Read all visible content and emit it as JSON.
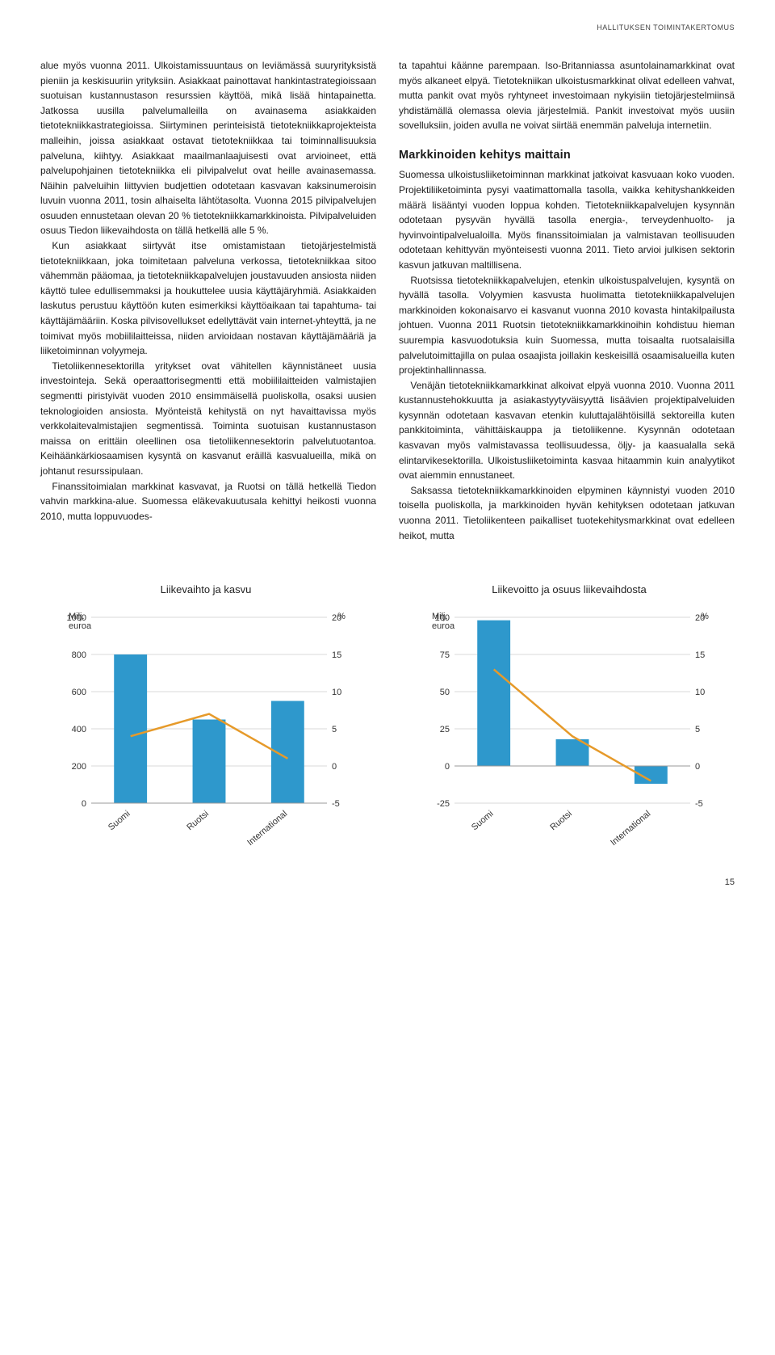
{
  "header_label": "HALLITUKSEN TOIMINTAKERTOMUS",
  "page_number": "15",
  "col1": {
    "p1": "alue myös vuonna 2011. Ulkoistamissuuntaus on leviämässä suuryrityksistä pieniin ja keskisuuriin yrityksiin. Asiakkaat painottavat hankintastrategioissaan suotuisan kustannustason resurssien käyttöä, mikä lisää hintapainetta. Jatkossa uusilla palvelumalleilla on avainasema asiakkaiden tietotekniikkastrategioissa. Siirtyminen perinteisistä tietotekniikkaprojekteista malleihin, joissa asiakkaat ostavat tietotekniikkaa tai toiminnallisuuksia palveluna, kiihtyy. Asiakkaat maailmanlaajuisesti ovat arvioineet, että palvelupohjainen tietotekniikka eli pilvipalvelut ovat heille avainasemassa. Näihin palveluihin liittyvien budjettien odotetaan kasvavan kaksinumeroisin luvuin vuonna 2011, tosin alhaiselta lähtötasolta. Vuonna 2015 pilvipalvelujen osuuden ennustetaan olevan 20 % tietotekniikkamarkkinoista. Pilvipalveluiden osuus Tiedon liikevaihdosta on tällä hetkellä alle 5 %.",
    "p2": "Kun asiakkaat siirtyvät itse omistamistaan tietojärjestelmistä tietotekniikkaan, joka toimitetaan palveluna verkossa, tietotekniikkaa sitoo vähemmän pääomaa, ja tietotekniikkapalvelujen joustavuuden ansiosta niiden käyttö tulee edullisemmaksi ja houkuttelee uusia käyttäjäryhmiä. Asiakkaiden laskutus perustuu käyttöön kuten esimerkiksi käyttöaikaan tai tapahtuma- tai käyttäjämääriin. Koska pilvisovellukset edellyttävät vain internet-yhteyttä, ja ne toimivat myös mobiililaitteissa, niiden arvioidaan nostavan käyttäjämääriä ja liiketoiminnan volyymeja.",
    "p3": "Tietoliikennesektorilla yritykset ovat vähitellen käynnistäneet uusia investointeja. Sekä operaattorisegmentti että mobiililaitteiden valmistajien segmentti piristyivät vuoden 2010 ensimmäisellä puoliskolla, osaksi uusien teknologioiden ansiosta. Myönteistä kehitystä on nyt havaittavissa myös verkkolaitevalmistajien segmentissä. Toiminta suotuisan kustannustason maissa on erittäin oleellinen osa tietoliikennesektorin palvelutuotantoa. Keihäänkärkiosaamisen kysyntä on kasvanut eräillä kasvualueilla, mikä on johtanut resurssipulaan.",
    "p4": "Finanssitoimialan markkinat kasvavat, ja Ruotsi on tällä hetkellä Tiedon vahvin markkina-alue. Suomessa eläkevakuutusala kehittyi heikosti vuonna 2010, mutta loppuvuodes-"
  },
  "col2": {
    "p1": "ta tapahtui käänne parempaan. Iso-Britanniassa asuntolainamarkkinat ovat myös alkaneet elpyä. Tietotekniikan ulkoistusmarkkinat olivat edelleen vahvat, mutta pankit ovat myös ryhtyneet investoimaan nykyisiin tietojärjestelmiinsä yhdistämällä olemassa olevia järjestelmiä. Pankit investoivat myös uusiin sovelluksiin, joiden avulla ne voivat siirtää enemmän palveluja internetiin.",
    "h1": "Markkinoiden kehitys maittain",
    "p2": "Suomessa ulkoistusliiketoiminnan markkinat jatkoivat kasvuaan koko vuoden. Projektiliiketoiminta pysyi vaatimattomalla tasolla, vaikka kehityshankkeiden määrä lisääntyi vuoden loppua kohden. Tietotekniikkapalvelujen kysynnän odotetaan pysyvän hyvällä tasolla energia-, terveydenhuolto- ja hyvinvointipalvelualoilla. Myös finanssitoimialan ja valmistavan teollisuuden odotetaan kehittyvän myönteisesti vuonna 2011. Tieto arvioi julkisen sektorin kasvun jatkuvan maltillisena.",
    "p3": "Ruotsissa tietotekniikkapalvelujen, etenkin ulkoistuspalvelujen, kysyntä on hyvällä tasolla. Volyymien kasvusta huolimatta tietotekniikkapalvelujen markkinoiden kokonaisarvo ei kasvanut vuonna 2010 kovasta hintakilpailusta johtuen. Vuonna 2011 Ruotsin tietotekniikkamarkkinoihin kohdistuu hieman suurempia kasvuodotuksia kuin Suomessa, mutta toisaalta ruotsalaisilla palvelutoimittajilla on pulaa osaajista joillakin keskeisillä osaamisalueilla kuten projektinhallinnassa.",
    "p4": "Venäjän tietotekniikkamarkkinat alkoivat elpyä vuonna 2010. Vuonna 2011 kustannustehokkuutta ja asiakastyytyväisyyttä lisäävien projektipalveluiden kysynnän odotetaan kasvavan etenkin kuluttajalähtöisillä sektoreilla kuten pankkitoiminta, vähittäiskauppa ja tietoliikenne. Kysynnän odotetaan kasvavan myös valmistavassa teollisuudessa, öljy- ja kaasualalla sekä elintarvikesektorilla. Ulkoistusliiketoiminta kasvaa hitaammin kuin analyytikot ovat aiemmin ennustaneet.",
    "p5": "Saksassa tietotekniikkamarkkinoiden elpyminen käynnistyi vuoden 2010 toisella puoliskolla, ja markkinoiden hyvän kehityksen odotetaan jatkuvan vuonna 2011. Tietoliikenteen paikalliset tuotekehitysmarkkinat ovat edelleen heikot, mutta"
  },
  "chart1": {
    "title": "Liikevaihto ja kasvu",
    "type": "bar_line_combo",
    "left_axis_label": "Milj.\neuroa",
    "right_axis_label": "%",
    "categories": [
      "Suomi",
      "Ruotsi",
      "International"
    ],
    "bar_values": [
      800,
      450,
      550
    ],
    "line_values": [
      4,
      7,
      1
    ],
    "left_ylim": [
      0,
      1000
    ],
    "left_ticks": [
      0,
      200,
      400,
      600,
      800,
      1000
    ],
    "right_ylim": [
      -5,
      20
    ],
    "right_ticks": [
      -5,
      0,
      5,
      10,
      15,
      20
    ],
    "bar_color": "#2e98cc",
    "line_color": "#e69a2a",
    "grid_color": "#d9d9d9",
    "background": "#ffffff",
    "label_fontsize": 11,
    "axis_fontsize": 11,
    "bar_width_ratio": 0.42
  },
  "chart2": {
    "title": "Liikevoitto ja osuus liikevaihdosta",
    "type": "bar_line_combo",
    "left_axis_label": "Milj.\neuroa",
    "right_axis_label": "%",
    "categories": [
      "Suomi",
      "Ruotsi",
      "International"
    ],
    "bar_values": [
      98,
      18,
      -12
    ],
    "line_values": [
      13,
      4,
      -2
    ],
    "left_ylim": [
      -25,
      100
    ],
    "left_ticks": [
      -25,
      0,
      25,
      50,
      75,
      100
    ],
    "right_ylim": [
      -5,
      20
    ],
    "right_ticks": [
      -5,
      0,
      5,
      10,
      15,
      20
    ],
    "bar_color": "#2e98cc",
    "line_color": "#e69a2a",
    "grid_color": "#d9d9d9",
    "background": "#ffffff",
    "label_fontsize": 11,
    "axis_fontsize": 11,
    "bar_width_ratio": 0.42
  }
}
